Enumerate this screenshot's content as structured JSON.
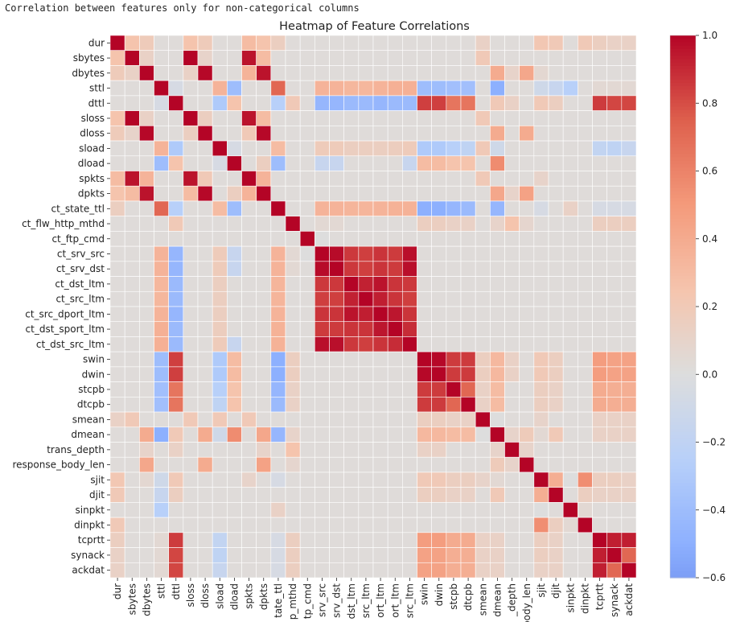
{
  "notebook": {
    "output_text": "Correlation between features only for non-categorical columns"
  },
  "chart_data": {
    "type": "heatmap",
    "title": "Heatmap of Feature Correlations",
    "xlabel": "",
    "ylabel": "",
    "colormap": "coolwarm",
    "vmin": -0.6,
    "vmax": 1.0,
    "colorbar_ticks": [
      1.0,
      0.8,
      0.6,
      0.4,
      0.2,
      0.0,
      -0.2,
      -0.4,
      -0.6
    ],
    "colorbar_tick_labels": [
      "1.0",
      "0.8",
      "0.6",
      "0.4",
      "0.2",
      "0.0",
      "−0.2",
      "−0.4",
      "−0.6"
    ],
    "features": [
      "dur",
      "sbytes",
      "dbytes",
      "sttl",
      "dttl",
      "sloss",
      "dloss",
      "sload",
      "dload",
      "spkts",
      "dpkts",
      "ct_state_ttl",
      "ct_flw_http_mthd",
      "ct_ftp_cmd",
      "ct_srv_src",
      "ct_srv_dst",
      "ct_dst_ltm",
      "ct_src_ltm",
      "ct_src_dport_ltm",
      "ct_dst_sport_ltm",
      "ct_dst_src_ltm",
      "swin",
      "dwin",
      "stcpb",
      "dtcpb",
      "smean",
      "dmean",
      "trans_depth",
      "response_body_len",
      "sjit",
      "djit",
      "sinpkt",
      "dinpkt",
      "tcprtt",
      "synack",
      "ackdat"
    ],
    "x_tick_labels": [
      "dur",
      "sbytes",
      "dbytes",
      "sttl",
      "dttl",
      "sloss",
      "dloss",
      "sload",
      "dload",
      "spkts",
      "dpkts",
      "ct_state_ttl",
      "ct_flw_http_mthd",
      "ct_ftp_cmd",
      "ct_srv_src",
      "ct_srv_dst",
      "ct_dst_ltm",
      "ct_src_ltm",
      "ct_src_dport_ltm",
      "ct_dst_sport_ltm",
      "ct_dst_src_ltm",
      "swin",
      "dwin",
      "stcpb",
      "dtcpb",
      "smean",
      "dmean",
      "trans_depth",
      "response_body_len",
      "sjit",
      "djit",
      "sinpkt",
      "dinpkt",
      "tcprtt",
      "synack",
      "ackdat"
    ],
    "x_tick_labels_visible": [
      "dur",
      "sbytes",
      "dbytes",
      "sttl",
      "dttl",
      "sloss",
      "dloss",
      "sload",
      "dload",
      "spkts",
      "dpkts",
      "tate_ttl",
      "p_mthd",
      "tp_cmd",
      "srv_src",
      "srv_dst",
      "dst_ltm",
      "src_ltm",
      "ort_ltm",
      "ort_ltm",
      "src_ltm",
      "swin",
      "dwin",
      "stcpb",
      "dtcpb",
      "smean",
      "dmean",
      "_depth",
      "body_len",
      "sjit",
      "djit",
      "sinpkt",
      "dinpkt",
      "tcprtt",
      "synack",
      "ackdat"
    ],
    "y_tick_labels": [
      "dur",
      "sbytes",
      "dbytes",
      "sttl",
      "dttl",
      "sloss",
      "dloss",
      "sload",
      "dload",
      "spkts",
      "dpkts",
      "ct_state_ttl",
      "ct_flw_http_mthd",
      "ct_ftp_cmd",
      "ct_srv_src",
      "ct_srv_dst",
      "ct_dst_ltm",
      "ct_src_ltm",
      "ct_src_dport_ltm",
      "ct_dst_sport_ltm",
      "ct_dst_src_ltm",
      "swin",
      "dwin",
      "stcpb",
      "dtcpb",
      "smean",
      "dmean",
      "trans_depth",
      "response_body_len",
      "sjit",
      "djit",
      "sinpkt",
      "dinpkt",
      "tcprtt",
      "synack",
      "ackdat"
    ],
    "default_value": 0.02,
    "pairs": [
      [
        "dur",
        "sbytes",
        0.25
      ],
      [
        "dur",
        "dbytes",
        0.18
      ],
      [
        "dur",
        "sloss",
        0.25
      ],
      [
        "dur",
        "dloss",
        0.18
      ],
      [
        "dur",
        "spkts",
        0.3
      ],
      [
        "dur",
        "dpkts",
        0.25
      ],
      [
        "dur",
        "ct_state_ttl",
        0.15
      ],
      [
        "dur",
        "smean",
        0.12
      ],
      [
        "dur",
        "sjit",
        0.22
      ],
      [
        "dur",
        "djit",
        0.2
      ],
      [
        "dur",
        "dinpkt",
        0.2
      ],
      [
        "dur",
        "tcprtt",
        0.15
      ],
      [
        "dur",
        "synack",
        0.12
      ],
      [
        "dur",
        "ackdat",
        0.12
      ],
      [
        "sbytes",
        "dbytes",
        0.12
      ],
      [
        "sbytes",
        "sloss",
        1.0
      ],
      [
        "sbytes",
        "spkts",
        0.96
      ],
      [
        "sbytes",
        "dpkts",
        0.3
      ],
      [
        "sbytes",
        "smean",
        0.2
      ],
      [
        "sbytes",
        "dloss",
        0.1
      ],
      [
        "dbytes",
        "dloss",
        0.99
      ],
      [
        "dbytes",
        "dpkts",
        0.96
      ],
      [
        "dbytes",
        "dmean",
        0.4
      ],
      [
        "dbytes",
        "response_body_len",
        0.42
      ],
      [
        "dbytes",
        "sloss",
        0.12
      ],
      [
        "dbytes",
        "spkts",
        0.35
      ],
      [
        "dbytes",
        "trans_depth",
        0.1
      ],
      [
        "dbytes",
        "sjit",
        0.06
      ],
      [
        "sttl",
        "dttl",
        -0.05
      ],
      [
        "sttl",
        "sload",
        0.35
      ],
      [
        "sttl",
        "dload",
        -0.4
      ],
      [
        "sttl",
        "ct_state_ttl",
        0.72
      ],
      [
        "sttl",
        "ct_srv_src",
        0.35
      ],
      [
        "sttl",
        "ct_srv_dst",
        0.35
      ],
      [
        "sttl",
        "ct_dst_ltm",
        0.33
      ],
      [
        "sttl",
        "ct_src_ltm",
        0.33
      ],
      [
        "sttl",
        "ct_src_dport_ltm",
        0.35
      ],
      [
        "sttl",
        "ct_dst_sport_ltm",
        0.37
      ],
      [
        "sttl",
        "ct_dst_src_ltm",
        0.37
      ],
      [
        "sttl",
        "swin",
        -0.4
      ],
      [
        "sttl",
        "dwin",
        -0.4
      ],
      [
        "sttl",
        "stcpb",
        -0.38
      ],
      [
        "sttl",
        "dtcpb",
        -0.38
      ],
      [
        "sttl",
        "dmean",
        -0.5
      ],
      [
        "sttl",
        "sjit",
        -0.1
      ],
      [
        "sttl",
        "djit",
        -0.15
      ],
      [
        "sttl",
        "sinpkt",
        -0.25
      ],
      [
        "sttl",
        "tcprtt",
        0.05
      ],
      [
        "sttl",
        "synack",
        0.05
      ],
      [
        "sttl",
        "ackdat",
        0.05
      ],
      [
        "dttl",
        "sload",
        -0.3
      ],
      [
        "dttl",
        "dload",
        0.25
      ],
      [
        "dttl",
        "ct_state_ttl",
        -0.25
      ],
      [
        "dttl",
        "ct_flw_http_mthd",
        0.2
      ],
      [
        "dttl",
        "ct_srv_src",
        -0.45
      ],
      [
        "dttl",
        "ct_srv_dst",
        -0.45
      ],
      [
        "dttl",
        "ct_dst_ltm",
        -0.42
      ],
      [
        "dttl",
        "ct_src_ltm",
        -0.42
      ],
      [
        "dttl",
        "ct_src_dport_ltm",
        -0.45
      ],
      [
        "dttl",
        "ct_dst_sport_ltm",
        -0.42
      ],
      [
        "dttl",
        "ct_dst_src_ltm",
        -0.42
      ],
      [
        "dttl",
        "swin",
        0.84
      ],
      [
        "dttl",
        "dwin",
        0.84
      ],
      [
        "dttl",
        "stcpb",
        0.66
      ],
      [
        "dttl",
        "dtcpb",
        0.66
      ],
      [
        "dttl",
        "dmean",
        0.2
      ],
      [
        "dttl",
        "trans_depth",
        0.12
      ],
      [
        "dttl",
        "sjit",
        0.2
      ],
      [
        "dttl",
        "djit",
        0.15
      ],
      [
        "dttl",
        "tcprtt",
        0.85
      ],
      [
        "dttl",
        "synack",
        0.82
      ],
      [
        "dttl",
        "ackdat",
        0.82
      ],
      [
        "sloss",
        "spkts",
        0.96
      ],
      [
        "sloss",
        "dpkts",
        0.3
      ],
      [
        "sloss",
        "dloss",
        0.15
      ],
      [
        "sloss",
        "smean",
        0.2
      ],
      [
        "dloss",
        "dpkts",
        0.99
      ],
      [
        "dloss",
        "dmean",
        0.4
      ],
      [
        "dloss",
        "response_body_len",
        0.4
      ],
      [
        "dloss",
        "spkts",
        0.2
      ],
      [
        "sload",
        "dload",
        -0.05
      ],
      [
        "sload",
        "ct_state_ttl",
        0.3
      ],
      [
        "sload",
        "ct_srv_src",
        0.18
      ],
      [
        "sload",
        "ct_srv_dst",
        0.18
      ],
      [
        "sload",
        "ct_dst_ltm",
        0.15
      ],
      [
        "sload",
        "ct_src_ltm",
        0.15
      ],
      [
        "sload",
        "ct_src_dport_ltm",
        0.15
      ],
      [
        "sload",
        "ct_dst_sport_ltm",
        0.16
      ],
      [
        "sload",
        "ct_dst_src_ltm",
        0.18
      ],
      [
        "sload",
        "swin",
        -0.3
      ],
      [
        "sload",
        "dwin",
        -0.3
      ],
      [
        "sload",
        "stcpb",
        -0.25
      ],
      [
        "sload",
        "dtcpb",
        -0.2
      ],
      [
        "sload",
        "smean",
        0.2
      ],
      [
        "sload",
        "dmean",
        -0.1
      ],
      [
        "sload",
        "tcprtt",
        -0.18
      ],
      [
        "sload",
        "synack",
        -0.2
      ],
      [
        "sload",
        "ackdat",
        -0.15
      ],
      [
        "dload",
        "ct_state_ttl",
        -0.4
      ],
      [
        "dload",
        "swin",
        0.3
      ],
      [
        "dload",
        "dwin",
        0.3
      ],
      [
        "dload",
        "stcpb",
        0.25
      ],
      [
        "dload",
        "dtcpb",
        0.25
      ],
      [
        "dload",
        "dmean",
        0.56
      ],
      [
        "dload",
        "dpkts",
        0.15
      ],
      [
        "dload",
        "ct_srv_src",
        -0.15
      ],
      [
        "dload",
        "ct_srv_dst",
        -0.15
      ],
      [
        "dload",
        "ct_dst_src_ltm",
        -0.15
      ],
      [
        "spkts",
        "dpkts",
        0.35
      ],
      [
        "spkts",
        "smean",
        0.2
      ],
      [
        "spkts",
        "sjit",
        0.1
      ],
      [
        "dpkts",
        "dmean",
        0.42
      ],
      [
        "dpkts",
        "response_body_len",
        0.45
      ],
      [
        "dpkts",
        "trans_depth",
        0.1
      ],
      [
        "ct_state_ttl",
        "ct_srv_src",
        0.35
      ],
      [
        "ct_state_ttl",
        "ct_srv_dst",
        0.35
      ],
      [
        "ct_state_ttl",
        "ct_dst_ltm",
        0.34
      ],
      [
        "ct_state_ttl",
        "ct_src_ltm",
        0.34
      ],
      [
        "ct_state_ttl",
        "ct_src_dport_ltm",
        0.35
      ],
      [
        "ct_state_ttl",
        "ct_dst_sport_ltm",
        0.36
      ],
      [
        "ct_state_ttl",
        "ct_dst_src_ltm",
        0.36
      ],
      [
        "ct_state_ttl",
        "swin",
        -0.5
      ],
      [
        "ct_state_ttl",
        "dwin",
        -0.5
      ],
      [
        "ct_state_ttl",
        "stcpb",
        -0.45
      ],
      [
        "ct_state_ttl",
        "dtcpb",
        -0.42
      ],
      [
        "ct_state_ttl",
        "dmean",
        -0.45
      ],
      [
        "ct_state_ttl",
        "sjit",
        -0.05
      ],
      [
        "ct_state_ttl",
        "sinpkt",
        0.12
      ],
      [
        "ct_state_ttl",
        "tcprtt",
        -0.05
      ],
      [
        "ct_state_ttl",
        "synack",
        -0.05
      ],
      [
        "ct_state_ttl",
        "ackdat",
        -0.05
      ],
      [
        "ct_flw_http_mthd",
        "trans_depth",
        0.25
      ],
      [
        "ct_flw_http_mthd",
        "ct_srv_src",
        0.05
      ],
      [
        "ct_flw_http_mthd",
        "ct_srv_dst",
        0.05
      ],
      [
        "ct_flw_http_mthd",
        "swin",
        0.15
      ],
      [
        "ct_flw_http_mthd",
        "dwin",
        0.15
      ],
      [
        "ct_flw_http_mthd",
        "stcpb",
        0.12
      ],
      [
        "ct_flw_http_mthd",
        "dtcpb",
        0.12
      ],
      [
        "ct_flw_http_mthd",
        "dmean",
        0.1
      ],
      [
        "ct_flw_http_mthd",
        "tcprtt",
        0.15
      ],
      [
        "ct_flw_http_mthd",
        "synack",
        0.15
      ],
      [
        "ct_flw_http_mthd",
        "ackdat",
        0.15
      ],
      [
        "ct_flw_http_mthd",
        "response_body_len",
        0.08
      ],
      [
        "ct_ftp_cmd",
        "ct_srv_src",
        0.0
      ],
      [
        "ct_srv_src",
        "ct_srv_dst",
        0.98
      ],
      [
        "ct_srv_src",
        "ct_dst_ltm",
        0.86
      ],
      [
        "ct_srv_src",
        "ct_src_ltm",
        0.84
      ],
      [
        "ct_srv_src",
        "ct_src_dport_ltm",
        0.87
      ],
      [
        "ct_srv_src",
        "ct_dst_sport_ltm",
        0.85
      ],
      [
        "ct_srv_src",
        "ct_dst_src_ltm",
        0.97
      ],
      [
        "ct_srv_dst",
        "ct_dst_ltm",
        0.86
      ],
      [
        "ct_srv_dst",
        "ct_src_ltm",
        0.84
      ],
      [
        "ct_srv_dst",
        "ct_src_dport_ltm",
        0.87
      ],
      [
        "ct_srv_dst",
        "ct_dst_sport_ltm",
        0.85
      ],
      [
        "ct_srv_dst",
        "ct_dst_src_ltm",
        0.97
      ],
      [
        "ct_dst_ltm",
        "ct_src_ltm",
        0.92
      ],
      [
        "ct_dst_ltm",
        "ct_src_dport_ltm",
        0.96
      ],
      [
        "ct_dst_ltm",
        "ct_dst_sport_ltm",
        0.87
      ],
      [
        "ct_dst_ltm",
        "ct_dst_src_ltm",
        0.86
      ],
      [
        "ct_src_ltm",
        "ct_src_dport_ltm",
        0.93
      ],
      [
        "ct_src_ltm",
        "ct_dst_sport_ltm",
        0.87
      ],
      [
        "ct_src_ltm",
        "ct_dst_src_ltm",
        0.84
      ],
      [
        "ct_src_dport_ltm",
        "ct_dst_sport_ltm",
        0.95
      ],
      [
        "ct_src_dport_ltm",
        "ct_dst_src_ltm",
        0.87
      ],
      [
        "ct_dst_sport_ltm",
        "ct_dst_src_ltm",
        0.89
      ],
      [
        "swin",
        "dwin",
        0.99
      ],
      [
        "swin",
        "stcpb",
        0.85
      ],
      [
        "swin",
        "dtcpb",
        0.85
      ],
      [
        "swin",
        "smean",
        0.15
      ],
      [
        "swin",
        "dmean",
        0.32
      ],
      [
        "swin",
        "trans_depth",
        0.12
      ],
      [
        "swin",
        "sjit",
        0.2
      ],
      [
        "swin",
        "djit",
        0.15
      ],
      [
        "swin",
        "tcprtt",
        0.48
      ],
      [
        "swin",
        "synack",
        0.45
      ],
      [
        "swin",
        "ackdat",
        0.45
      ],
      [
        "dwin",
        "stcpb",
        0.85
      ],
      [
        "dwin",
        "dtcpb",
        0.85
      ],
      [
        "dwin",
        "smean",
        0.15
      ],
      [
        "dwin",
        "dmean",
        0.32
      ],
      [
        "dwin",
        "trans_depth",
        0.12
      ],
      [
        "dwin",
        "sjit",
        0.2
      ],
      [
        "dwin",
        "djit",
        0.15
      ],
      [
        "dwin",
        "tcprtt",
        0.48
      ],
      [
        "dwin",
        "synack",
        0.45
      ],
      [
        "dwin",
        "ackdat",
        0.45
      ],
      [
        "stcpb",
        "dtcpb",
        0.72
      ],
      [
        "stcpb",
        "smean",
        0.12
      ],
      [
        "stcpb",
        "dmean",
        0.3
      ],
      [
        "stcpb",
        "sjit",
        0.15
      ],
      [
        "stcpb",
        "djit",
        0.12
      ],
      [
        "stcpb",
        "tcprtt",
        0.4
      ],
      [
        "stcpb",
        "synack",
        0.38
      ],
      [
        "stcpb",
        "ackdat",
        0.38
      ],
      [
        "dtcpb",
        "smean",
        0.12
      ],
      [
        "dtcpb",
        "dmean",
        0.3
      ],
      [
        "dtcpb",
        "sjit",
        0.15
      ],
      [
        "dtcpb",
        "djit",
        0.12
      ],
      [
        "dtcpb",
        "tcprtt",
        0.4
      ],
      [
        "dtcpb",
        "synack",
        0.38
      ],
      [
        "dtcpb",
        "ackdat",
        0.38
      ],
      [
        "smean",
        "dmean",
        0.0
      ],
      [
        "smean",
        "sjit",
        0.1
      ],
      [
        "smean",
        "tcprtt",
        0.12
      ],
      [
        "smean",
        "synack",
        0.12
      ],
      [
        "smean",
        "ackdat",
        0.12
      ],
      [
        "dmean",
        "trans_depth",
        0.1
      ],
      [
        "dmean",
        "response_body_len",
        0.18
      ],
      [
        "dmean",
        "sjit",
        0.05
      ],
      [
        "dmean",
        "djit",
        0.2
      ],
      [
        "dmean",
        "tcprtt",
        0.12
      ],
      [
        "dmean",
        "synack",
        0.12
      ],
      [
        "dmean",
        "ackdat",
        0.12
      ],
      [
        "trans_depth",
        "response_body_len",
        0.1
      ],
      [
        "sjit",
        "djit",
        0.38
      ],
      [
        "sjit",
        "dinpkt",
        0.55
      ],
      [
        "sjit",
        "sinpkt",
        0.0
      ],
      [
        "sjit",
        "tcprtt",
        0.15
      ],
      [
        "sjit",
        "synack",
        0.15
      ],
      [
        "sjit",
        "ackdat",
        0.12
      ],
      [
        "djit",
        "dinpkt",
        0.15
      ],
      [
        "djit",
        "tcprtt",
        0.12
      ],
      [
        "djit",
        "synack",
        0.12
      ],
      [
        "djit",
        "ackdat",
        0.12
      ],
      [
        "sinpkt",
        "dinpkt",
        0.05
      ],
      [
        "tcprtt",
        "synack",
        0.93
      ],
      [
        "tcprtt",
        "ackdat",
        0.93
      ],
      [
        "synack",
        "ackdat",
        0.72
      ]
    ]
  }
}
